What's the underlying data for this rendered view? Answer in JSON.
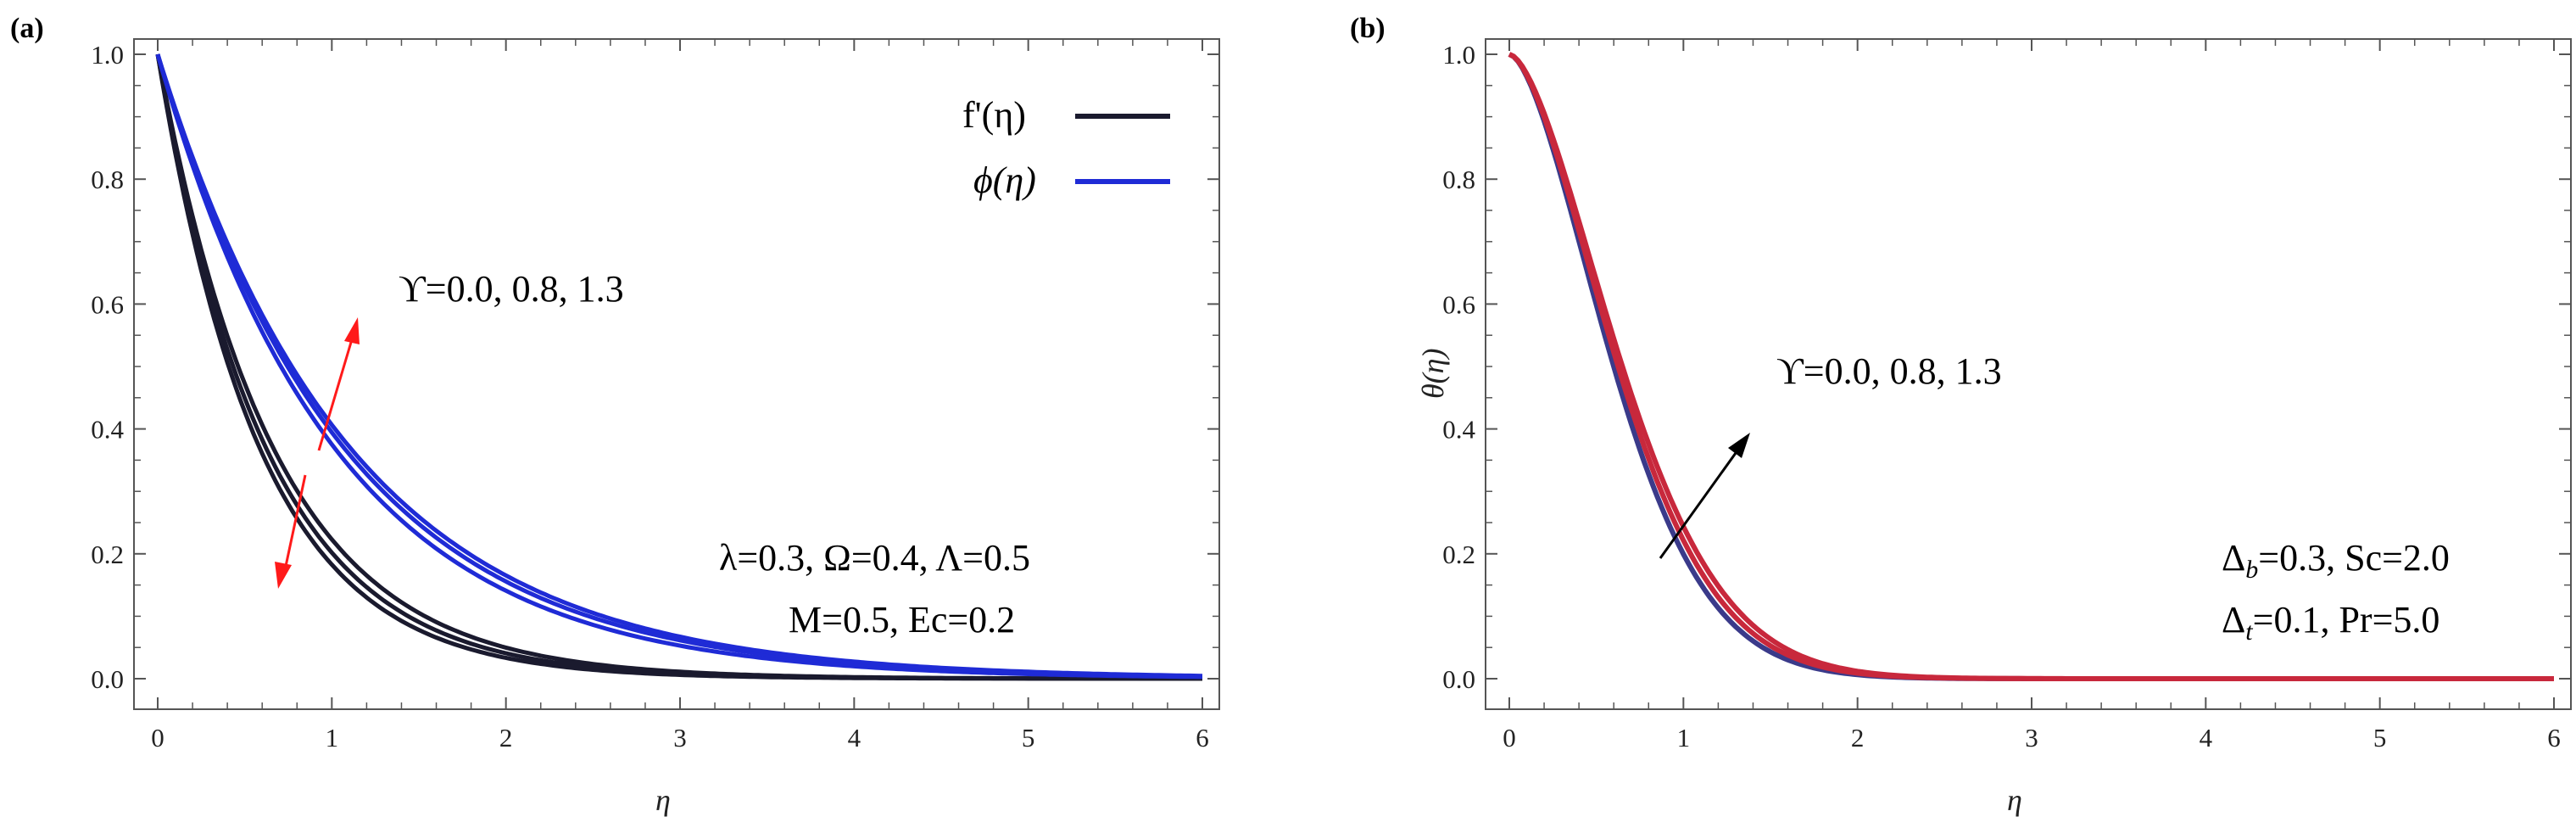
{
  "colors": {
    "black_curve": "#1a1a2e",
    "blue_curve": "#1f2bd6",
    "red_curve": "#c8283c",
    "red_arrow": "#ff1a1a",
    "black_arrow": "#000000",
    "axis": "#555555"
  },
  "chart_data": [
    {
      "type": "line",
      "panel_label": "(a)",
      "xlabel": "η",
      "ylabel": "",
      "xlim": [
        0,
        6
      ],
      "ylim": [
        0,
        1.0
      ],
      "x_ticks": [
        "0",
        "1",
        "2",
        "3",
        "4",
        "5",
        "6"
      ],
      "y_ticks": [
        "0.0",
        "0.2",
        "0.4",
        "0.6",
        "0.8",
        "1.0"
      ],
      "legend": [
        {
          "label": "f'(η)",
          "color": "#1a1a2e"
        },
        {
          "label": "ϕ(η)",
          "color": "#1f2bd6"
        }
      ],
      "annotation_param": "ϒ=0.0, 0.8, 1.3",
      "annotation_fixed_line1": "λ=0.3, Ω=0.4, Λ=0.5",
      "annotation_fixed_line2": "M=0.5, Ec=0.2",
      "series": [
        {
          "name": "f'(η), ϒ=0.0",
          "group": "f",
          "decay_rate": 1.7
        },
        {
          "name": "f'(η), ϒ=0.8",
          "group": "f",
          "decay_rate": 1.6
        },
        {
          "name": "f'(η), ϒ=1.3",
          "group": "f",
          "decay_rate": 1.5
        },
        {
          "name": "ϕ(η), ϒ=0.0",
          "group": "phi",
          "decay_rate": 0.98
        },
        {
          "name": "ϕ(η), ϒ=0.8",
          "group": "phi",
          "decay_rate": 0.93
        },
        {
          "name": "ϕ(η), ϒ=1.3",
          "group": "phi",
          "decay_rate": 0.9
        }
      ]
    },
    {
      "type": "line",
      "panel_label": "(b)",
      "xlabel": "η",
      "ylabel": "θ(η)",
      "xlim": [
        0,
        6
      ],
      "ylim": [
        0,
        1.0
      ],
      "x_ticks": [
        "0",
        "1",
        "2",
        "3",
        "4",
        "5",
        "6"
      ],
      "y_ticks": [
        "0.0",
        "0.2",
        "0.4",
        "0.6",
        "0.8",
        "1.0"
      ],
      "annotation_param": "ϒ=0.0, 0.8, 1.3",
      "annotation_fixed_line1": "Δb=0.3, Sc=2.0",
      "annotation_fixed_line2": "Δt=0.1, Pr=5.0",
      "series": [
        {
          "name": "θ(η), ϒ=0.0",
          "group": "theta",
          "spread": 0.96
        },
        {
          "name": "θ(η), ϒ=0.8",
          "group": "theta",
          "spread": 1.0
        },
        {
          "name": "θ(η), ϒ=1.3",
          "group": "theta",
          "spread": 1.04
        }
      ]
    }
  ],
  "annotations_text": {
    "a_sub_prefix_1": "Δ",
    "a_sub_b": "b",
    "a_sub_rest_1": "=0.3, Sc=2.0",
    "a_sub_prefix_2": "Δ",
    "a_sub_t": "t",
    "a_sub_rest_2": "=0.1, Pr=5.0"
  }
}
